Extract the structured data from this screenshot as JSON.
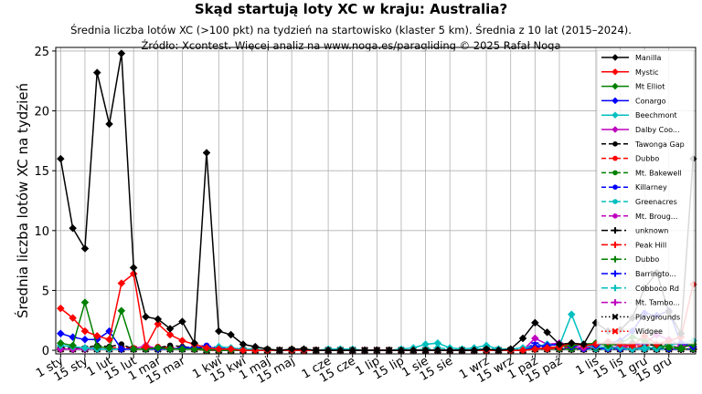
{
  "title": "Skąd startują loty XC w kraju: Australia?",
  "subtitle_line1": "Średnia liczba lotów XC (>100 pkt) na tydzień na startowisko (klaster 5 km). Średnia z 10 lat (2015–2024).",
  "subtitle_line2": "Źródło: Xcontest. Więcej analiz na www.noga.es/paragliding © 2025 Rafał Noga",
  "chart_data": {
    "type": "line",
    "ylabel": "Średnia liczba lotów XC na tydzień",
    "ylim": [
      -0.3,
      25.3
    ],
    "yticks": [
      0,
      5,
      10,
      15,
      20,
      25
    ],
    "grid": true,
    "legend_position": "top-right",
    "x_tick_labels": [
      "1 sty",
      "15 sty",
      "1 lut",
      "15 lut",
      "1 mar",
      "15 mar",
      "1 kwi",
      "15 kwi",
      "1 maj",
      "15 maj",
      "1 cze",
      "15 cze",
      "1 lip",
      "15 lip",
      "1 sie",
      "15 sie",
      "1 wrz",
      "15 wrz",
      "1 paź",
      "15 paź",
      "1 lis",
      "15 lis",
      "1 gru",
      "15 gru"
    ],
    "x_tick_weeks": [
      1,
      3,
      5,
      7,
      9,
      11,
      14,
      16,
      18,
      20,
      23,
      25,
      27,
      29,
      31,
      33,
      36,
      38,
      40,
      42,
      45,
      47,
      49,
      51
    ],
    "x_weeks": [
      1,
      2,
      3,
      4,
      5,
      6,
      7,
      8,
      9,
      10,
      11,
      12,
      13,
      14,
      15,
      16,
      17,
      18,
      19,
      20,
      21,
      22,
      23,
      24,
      25,
      26,
      27,
      28,
      29,
      30,
      31,
      32,
      33,
      34,
      35,
      36,
      37,
      38,
      39,
      40,
      41,
      42,
      43,
      44,
      45,
      46,
      47,
      48,
      49,
      50,
      51,
      52,
      53
    ],
    "series": [
      {
        "name": "Manilla",
        "color": "#000000",
        "dash": "solid",
        "marker": "diamond",
        "values": [
          16,
          10.2,
          8.5,
          23.2,
          18.9,
          24.8,
          6.9,
          2.8,
          2.6,
          1.8,
          2.4,
          0.6,
          16.5,
          1.6,
          1.3,
          0.5,
          0.3,
          0.1,
          0.0,
          0.1,
          0.1,
          0,
          0,
          0,
          0,
          0,
          0,
          0,
          0,
          0,
          0,
          0,
          0,
          0,
          0,
          0.1,
          0,
          0.1,
          1.0,
          2.3,
          1.5,
          0.5,
          0.6,
          0.5,
          2.3,
          1.6,
          1.7,
          2.7,
          5.2,
          6.5,
          3.2,
          1.4,
          16.0
        ]
      },
      {
        "name": "Mystic",
        "color": "#ff0000",
        "dash": "solid",
        "marker": "diamond",
        "values": [
          3.5,
          2.7,
          1.6,
          1.2,
          0.9,
          5.6,
          6.4,
          0.3,
          2.2,
          1.3,
          0.8,
          0.5,
          0.2,
          0.1,
          0.1,
          0,
          0,
          0,
          0,
          0,
          0,
          0,
          0,
          0,
          0,
          0,
          0,
          0,
          0,
          0,
          0,
          0,
          0,
          0,
          0,
          0,
          0,
          0,
          0,
          0.1,
          0.2,
          0.3,
          0.6,
          0.4,
          0.5,
          0.7,
          0.5,
          0.4,
          1.2,
          0.5,
          0.8,
          1.1,
          5.5
        ]
      },
      {
        "name": "Mt Elliot",
        "color": "#008000",
        "dash": "solid",
        "marker": "diamond",
        "values": [
          0.6,
          0.4,
          4.0,
          0.3,
          0.2,
          3.3,
          0.1,
          0.1,
          0.2,
          0.1,
          0.1,
          0.1,
          0.1,
          0,
          0,
          0,
          0,
          0,
          0,
          0,
          0,
          0,
          0,
          0,
          0,
          0,
          0,
          0,
          0,
          0,
          0,
          0,
          0,
          0,
          0,
          0,
          0,
          0,
          0,
          0.1,
          0.2,
          0.3,
          0.4,
          0.5,
          0.6,
          0.4,
          0.6,
          1.1,
          0.8,
          0.4,
          0.3,
          0.2,
          0.5
        ]
      },
      {
        "name": "Conargo",
        "color": "#0000ff",
        "dash": "solid",
        "marker": "diamond",
        "values": [
          1.4,
          1.1,
          0.9,
          0.9,
          1.6,
          0.1,
          0.1,
          0.1,
          0.1,
          0.1,
          0.2,
          0.2,
          0.3,
          0.1,
          0.1,
          0,
          0,
          0,
          0,
          0,
          0,
          0,
          0,
          0,
          0,
          0,
          0,
          0,
          0,
          0,
          0,
          0,
          0,
          0,
          0,
          0,
          0,
          0,
          0,
          0.3,
          0.4,
          0.5,
          0.3,
          0.5,
          0.4,
          0.6,
          0.8,
          1.6,
          3.1,
          2.9,
          3.3,
          0.6,
          0.3
        ]
      },
      {
        "name": "Beechmont",
        "color": "#00bfbf",
        "dash": "solid",
        "marker": "diamond",
        "values": [
          0.4,
          0.3,
          0.2,
          0.1,
          0.1,
          0.1,
          0.1,
          0.1,
          0.1,
          0.1,
          0.1,
          0.1,
          0.1,
          0.3,
          0.2,
          0.1,
          0.1,
          0,
          0,
          0,
          0,
          0,
          0.1,
          0.1,
          0.1,
          0,
          0,
          0,
          0.1,
          0.2,
          0.5,
          0.6,
          0.2,
          0.1,
          0.2,
          0.4,
          0.1,
          0.1,
          0.2,
          0.3,
          0.5,
          0.4,
          3.0,
          0.4,
          0.3,
          0.2,
          0.2,
          0.1,
          0.2,
          0.2,
          0.4,
          0.6,
          0.8
        ]
      },
      {
        "name": "Dalby Coo...",
        "color": "#bf00bf",
        "dash": "solid",
        "marker": "diamond",
        "values": [
          0.1,
          0.1,
          0.1,
          0.1,
          0.1,
          0.1,
          0.1,
          0.4,
          0.1,
          0.1,
          0.1,
          0.1,
          0.1,
          0,
          0,
          0,
          0,
          0,
          0,
          0,
          0,
          0,
          0,
          0,
          0,
          0,
          0,
          0,
          0,
          0,
          0,
          0,
          0,
          0,
          0,
          0,
          0,
          0,
          0,
          1.0,
          0.5,
          0.6,
          0.3,
          0.2,
          0.3,
          0.2,
          0.3,
          0.4,
          0.6,
          1.3,
          0.9,
          0.4,
          0.3
        ]
      },
      {
        "name": "Tawonga Gap",
        "color": "#000000",
        "dash": "dashed",
        "marker": "circle",
        "values": [
          0.2,
          0.2,
          0.2,
          0.4,
          0.3,
          0.5,
          0.1,
          0.1,
          0.2,
          0.4,
          0.3,
          0.2,
          0.1,
          0,
          0,
          0,
          0,
          0,
          0,
          0,
          0,
          0,
          0,
          0,
          0,
          0,
          0,
          0,
          0,
          0,
          0,
          0,
          0,
          0,
          0,
          0,
          0,
          0,
          0,
          0.1,
          0.2,
          0.3,
          0.4,
          0.5,
          0.6,
          0.4,
          0.5,
          0.6,
          0.5,
          0.4,
          0.5,
          0.6,
          0.5
        ]
      },
      {
        "name": "Dubbo",
        "color": "#ff0000",
        "dash": "dashed",
        "marker": "circle",
        "values": [
          0.1,
          0.1,
          0.2,
          0.1,
          0.2,
          0.2,
          0.2,
          0.2,
          0.3,
          0.2,
          0.2,
          0.1,
          0.1,
          0,
          0,
          0,
          0,
          0,
          0,
          0,
          0,
          0,
          0,
          0,
          0,
          0,
          0,
          0,
          0,
          0,
          0,
          0,
          0,
          0,
          0,
          0,
          0,
          0,
          0,
          0.1,
          0.1,
          0.2,
          0.3,
          0.2,
          0.3,
          0.2,
          0.2,
          0.3,
          0.4,
          0.5,
          0.6,
          0.5,
          0.3
        ]
      },
      {
        "name": "Mt. Bakewell",
        "color": "#008000",
        "dash": "dashed",
        "marker": "circle",
        "values": [
          0.1,
          0.1,
          0.1,
          0.1,
          0.1,
          0.1,
          0.1,
          0.1,
          0.1,
          0.1,
          0.1,
          0.1,
          0,
          0,
          0,
          0,
          0,
          0,
          0,
          0,
          0,
          0,
          0,
          0,
          0,
          0,
          0,
          0,
          0,
          0,
          0,
          0,
          0,
          0,
          0,
          0,
          0,
          0,
          0,
          0.1,
          0.1,
          0.1,
          0.1,
          0.2,
          0.2,
          0.3,
          0.3,
          0.4,
          0.3,
          0.2,
          0.2,
          0.1,
          0.1
        ]
      },
      {
        "name": "Killarney",
        "color": "#0000ff",
        "dash": "dashed",
        "marker": "circle",
        "values": [
          0.1,
          0.1,
          0.1,
          0.2,
          0.2,
          0.1,
          0.1,
          0.1,
          0.1,
          0.1,
          0.2,
          0.3,
          0.4,
          0.2,
          0.1,
          0,
          0,
          0,
          0,
          0,
          0,
          0,
          0,
          0,
          0,
          0,
          0,
          0,
          0,
          0,
          0,
          0,
          0,
          0,
          0,
          0,
          0,
          0,
          0,
          0.3,
          0.2,
          0.1,
          0.2,
          0.1,
          0.2,
          0.1,
          0.1,
          0.1,
          0.2,
          0.2,
          0.1,
          0.1,
          0.1
        ]
      },
      {
        "name": "Greenacres",
        "color": "#00bfbf",
        "dash": "dashed",
        "marker": "circle",
        "values": [
          0.1,
          0.1,
          0.1,
          0.1,
          0.1,
          0.1,
          0.1,
          0.1,
          0.1,
          0.1,
          0.1,
          0.1,
          0.1,
          0.1,
          0.1,
          0.1,
          0,
          0,
          0,
          0,
          0,
          0,
          0,
          0,
          0,
          0,
          0,
          0,
          0,
          0,
          0.1,
          0.2,
          0.1,
          0.1,
          0.1,
          0.1,
          0.1,
          0.1,
          0.1,
          0.1,
          0.1,
          0.1,
          0.1,
          0.1,
          0.1,
          0.1,
          0.1,
          0.1,
          0.1,
          0.1,
          0.1,
          0.1,
          0.1
        ]
      },
      {
        "name": "Mt. Broug...",
        "color": "#bf00bf",
        "dash": "dashed",
        "marker": "circle",
        "values": [
          0.1,
          0.1,
          0.1,
          0.1,
          0.1,
          0.1,
          0.1,
          0.1,
          0.1,
          0.1,
          0.1,
          0.1,
          0,
          0,
          0,
          0,
          0,
          0,
          0,
          0,
          0,
          0,
          0,
          0,
          0,
          0,
          0,
          0,
          0,
          0,
          0,
          0,
          0,
          0,
          0,
          0,
          0,
          0,
          0,
          0.2,
          0.3,
          0.2,
          0.1,
          0.1,
          0.2,
          0.3,
          0.2,
          0.2,
          0.2,
          0.3,
          0.4,
          0.2,
          0.1
        ]
      },
      {
        "name": "unknown",
        "color": "#000000",
        "dash": "dashdot",
        "marker": "plus",
        "values": [
          0.1,
          0.1,
          0.1,
          0.1,
          0.1,
          0.1,
          0.1,
          0.1,
          0.1,
          0.1,
          0.1,
          0.1,
          0.1,
          0,
          0,
          0,
          0,
          0,
          0,
          0,
          0,
          0,
          0,
          0,
          0,
          0,
          0,
          0,
          0,
          0,
          0,
          0,
          0,
          0,
          0,
          0,
          0,
          0,
          0,
          0.1,
          0.1,
          0.1,
          0.1,
          0.1,
          0.1,
          0.1,
          0.1,
          0.1,
          0.1,
          0.1,
          0.1,
          0.1,
          0.1
        ]
      },
      {
        "name": "Peak Hill",
        "color": "#ff0000",
        "dash": "dashdot",
        "marker": "plus",
        "values": [
          0.1,
          0.1,
          0.1,
          0.1,
          0.1,
          0.1,
          0.1,
          0.1,
          0.1,
          0.1,
          0.1,
          0.1,
          0,
          0,
          0,
          0,
          0,
          0,
          0,
          0,
          0,
          0,
          0,
          0,
          0,
          0,
          0,
          0,
          0,
          0,
          0,
          0,
          0,
          0,
          0,
          0,
          0,
          0,
          0,
          0.1,
          0.1,
          0.1,
          0.1,
          0.1,
          0.1,
          0.1,
          0.1,
          0.2,
          0.2,
          0.1,
          0.1,
          0.1,
          0.1
        ]
      },
      {
        "name": "Dubbo",
        "color": "#008000",
        "dash": "dashdot",
        "marker": "plus",
        "values": [
          0.1,
          0.1,
          0.1,
          0.1,
          0.1,
          0.1,
          0.1,
          0.1,
          0.1,
          0.1,
          0.1,
          0.1,
          0,
          0,
          0,
          0,
          0,
          0,
          0,
          0,
          0,
          0,
          0,
          0,
          0,
          0,
          0,
          0,
          0,
          0,
          0,
          0,
          0,
          0,
          0,
          0,
          0,
          0,
          0,
          0.1,
          0.1,
          0.1,
          0.1,
          0.1,
          0.1,
          0.1,
          0.1,
          0.1,
          0.1,
          0.1,
          0.1,
          0.1,
          0.1
        ]
      },
      {
        "name": "Barringto...",
        "color": "#0000ff",
        "dash": "dashdot",
        "marker": "plus",
        "values": [
          0.1,
          0.1,
          0.1,
          0.1,
          0.1,
          0.1,
          0.1,
          0.1,
          0.1,
          0.1,
          0.1,
          0.1,
          0,
          0,
          0,
          0,
          0,
          0,
          0,
          0,
          0,
          0,
          0,
          0,
          0,
          0,
          0,
          0,
          0,
          0,
          0,
          0,
          0,
          0,
          0,
          0,
          0,
          0,
          0,
          0.6,
          0.2,
          0.1,
          0.1,
          0.1,
          0.1,
          0.1,
          0.1,
          0.1,
          0.1,
          0.1,
          0.1,
          0.1,
          0.1
        ]
      },
      {
        "name": "Cobboco Rd",
        "color": "#00bfbf",
        "dash": "dashdot",
        "marker": "plus",
        "values": [
          0.1,
          0.1,
          0.1,
          0.1,
          0.1,
          0.1,
          0.1,
          0.1,
          0.1,
          0.1,
          0.1,
          0.1,
          0,
          0,
          0,
          0,
          0,
          0,
          0,
          0,
          0,
          0,
          0,
          0,
          0,
          0,
          0,
          0,
          0,
          0,
          0,
          0,
          0,
          0,
          0,
          0,
          0,
          0,
          0,
          0.1,
          0.1,
          0.1,
          0.1,
          0.1,
          0.1,
          0.1,
          0.1,
          0.1,
          0.1,
          0.1,
          0.1,
          0.1,
          0.1
        ]
      },
      {
        "name": "Mt. Tambo...",
        "color": "#bf00bf",
        "dash": "dashdot",
        "marker": "plus",
        "values": [
          0.1,
          0.1,
          0.1,
          0.1,
          0.1,
          0.1,
          0.1,
          0.1,
          0.1,
          0.1,
          0.1,
          0.1,
          0,
          0,
          0,
          0,
          0,
          0,
          0,
          0,
          0,
          0,
          0,
          0,
          0,
          0,
          0,
          0,
          0,
          0,
          0,
          0,
          0,
          0,
          0,
          0,
          0,
          0,
          0,
          0.1,
          0.1,
          0.1,
          0.1,
          0.1,
          0.1,
          0.1,
          0.1,
          0.1,
          0.1,
          0.1,
          0.1,
          0.1,
          0.1
        ]
      },
      {
        "name": "Playgrounds",
        "color": "#000000",
        "dash": "dotted",
        "marker": "x",
        "values": [
          0.1,
          0.1,
          0.1,
          0.1,
          0.1,
          0.1,
          0.1,
          0.1,
          0.1,
          0.1,
          0.1,
          0.1,
          0,
          0,
          0,
          0,
          0,
          0,
          0,
          0,
          0,
          0,
          0,
          0,
          0,
          0,
          0,
          0,
          0,
          0,
          0,
          0,
          0,
          0,
          0,
          0,
          0,
          0,
          0,
          0.1,
          0.1,
          0.1,
          0.1,
          0.1,
          0.1,
          0.1,
          0.1,
          0.1,
          0.1,
          0.1,
          0.1,
          0.1,
          0.1
        ]
      },
      {
        "name": "Widgee",
        "color": "#ff0000",
        "dash": "dotted",
        "marker": "x",
        "values": [
          0.1,
          0.1,
          0.1,
          0.1,
          0.1,
          0.1,
          0.1,
          0.1,
          0.1,
          0.1,
          0.1,
          0.1,
          0,
          0,
          0,
          0,
          0,
          0,
          0,
          0,
          0,
          0,
          0,
          0,
          0,
          0,
          0,
          0,
          0,
          0,
          0,
          0,
          0,
          0,
          0,
          0,
          0,
          0,
          0,
          0.1,
          0.1,
          0.1,
          0.1,
          0.1,
          0.1,
          0.1,
          0.1,
          0.1,
          0.1,
          0.1,
          0.1,
          0.1,
          0.1
        ]
      }
    ]
  }
}
